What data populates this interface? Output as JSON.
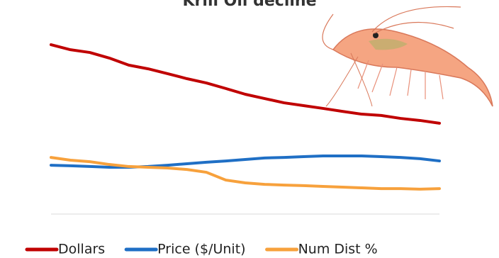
{
  "chart_data": {
    "type": "line",
    "title": "Krill Oil decline",
    "categories": [
      null,
      null,
      null,
      null,
      null,
      null,
      null,
      null,
      null,
      null,
      null,
      null,
      null,
      null,
      null,
      null,
      null,
      null,
      null,
      null,
      null
    ],
    "ylim": [
      0,
      100
    ],
    "series": [
      {
        "name": "Dollars",
        "color": "#c00000",
        "values": [
          91.2,
          88.5,
          87.0,
          84.0,
          80.2,
          78.2,
          75.6,
          72.9,
          70.6,
          67.6,
          64.5,
          62.2,
          59.9,
          58.4,
          56.9,
          55.3,
          53.8,
          53.1,
          51.5,
          50.4,
          48.9
        ]
      },
      {
        "name": "Price ($/Unit)",
        "color": "#1f6fc5",
        "values": [
          26.3,
          26.0,
          25.6,
          25.2,
          25.2,
          25.6,
          26.3,
          27.1,
          27.9,
          28.6,
          29.4,
          30.2,
          30.5,
          30.9,
          31.3,
          31.3,
          31.3,
          30.9,
          30.5,
          29.8,
          28.6
        ]
      },
      {
        "name": "Num Dist %",
        "color": "#f7a13c",
        "values": [
          30.5,
          29.0,
          28.2,
          26.7,
          25.6,
          25.2,
          24.8,
          24.0,
          22.5,
          18.3,
          16.8,
          16.0,
          15.6,
          15.3,
          14.9,
          14.5,
          14.1,
          13.7,
          13.7,
          13.4,
          13.7
        ]
      }
    ]
  }
}
